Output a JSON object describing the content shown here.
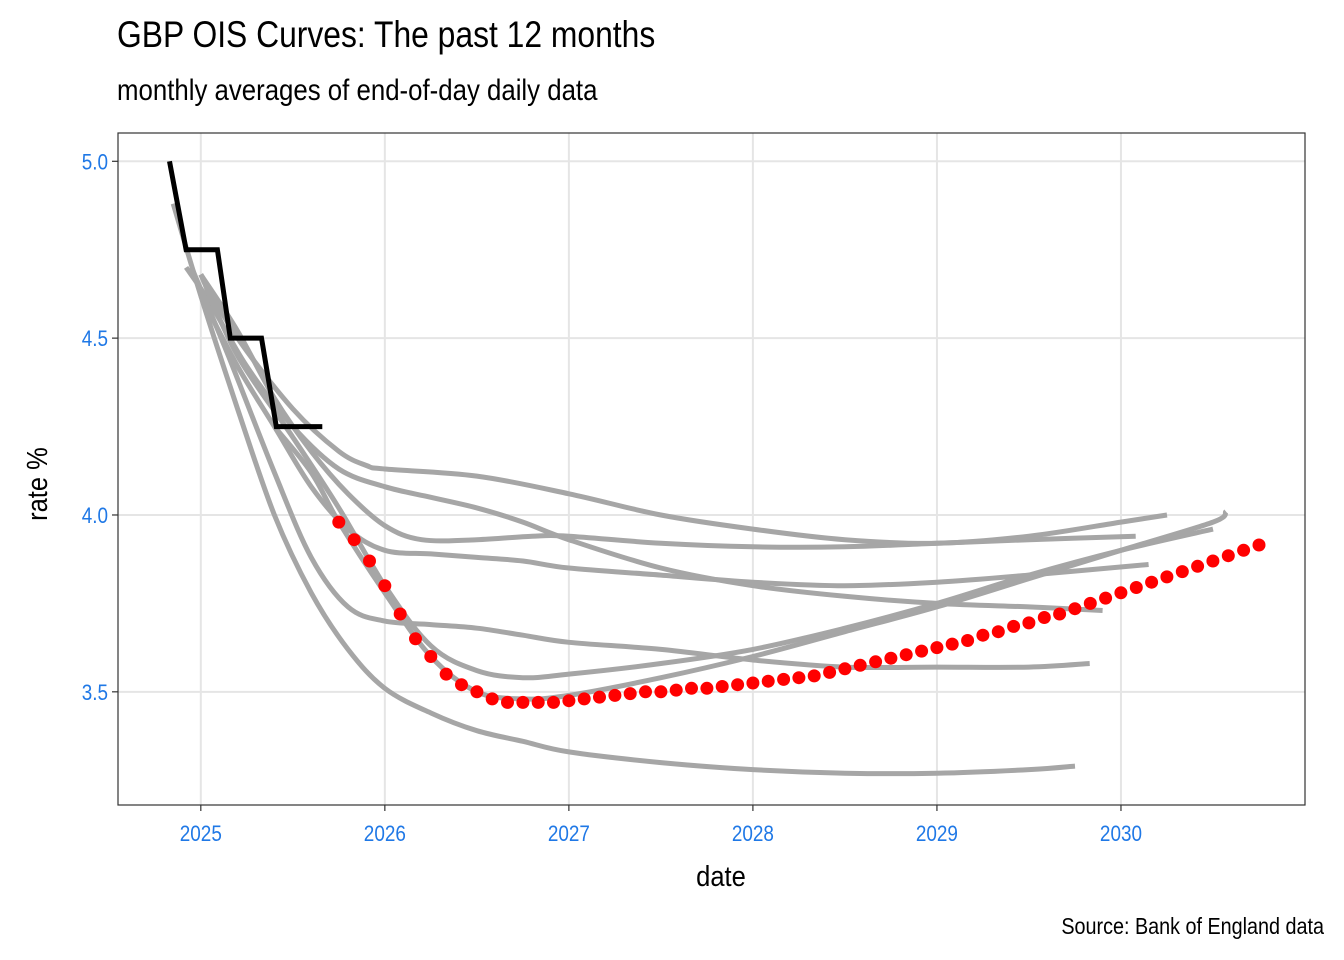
{
  "chart_data": {
    "type": "line",
    "title": "GBP OIS Curves: The past 12 months",
    "subtitle": "monthly averages of end-of-day daily data",
    "xlabel": "date",
    "ylabel": "rate %",
    "caption": "Source: Bank of England data",
    "xlim": [
      2024.55,
      2031.0
    ],
    "ylim": [
      3.18,
      5.08
    ],
    "x_ticks": [
      2025,
      2026,
      2027,
      2028,
      2029,
      2030
    ],
    "x_tick_labels": [
      "2025",
      "2026",
      "2027",
      "2028",
      "2029",
      "2030"
    ],
    "y_ticks": [
      3.5,
      4.0,
      4.5,
      5.0
    ],
    "y_tick_labels": [
      "3.5",
      "4.0",
      "4.5",
      "5.0"
    ],
    "grid": true,
    "colors": {
      "historical_curves": "#a6a6a6",
      "bank_rate": "#000000",
      "latest_curve": "#ff0000",
      "tick_labels": "#1f78e6"
    },
    "series": [
      {
        "style": "step",
        "color": "#000000",
        "points": [
          [
            2024.83,
            5.0
          ],
          [
            2024.92,
            4.75
          ],
          [
            2025.09,
            4.75
          ],
          [
            2025.16,
            4.5
          ],
          [
            2025.33,
            4.5
          ],
          [
            2025.41,
            4.25
          ],
          [
            2025.66,
            4.25
          ]
        ]
      },
      {
        "style": "line",
        "color": "#a6a6a6",
        "points": [
          [
            2024.92,
            4.7
          ],
          [
            2025.05,
            4.6
          ],
          [
            2025.25,
            4.42
          ],
          [
            2025.5,
            4.25
          ],
          [
            2025.75,
            4.13
          ],
          [
            2026.0,
            4.08
          ],
          [
            2026.25,
            4.05
          ],
          [
            2026.5,
            4.02
          ],
          [
            2026.75,
            3.98
          ],
          [
            2027.0,
            3.93
          ],
          [
            2027.5,
            3.85
          ],
          [
            2028.0,
            3.8
          ],
          [
            2028.5,
            3.77
          ],
          [
            2029.0,
            3.75
          ],
          [
            2029.5,
            3.74
          ],
          [
            2029.9,
            3.73
          ]
        ]
      },
      {
        "style": "line",
        "color": "#a6a6a6",
        "points": [
          [
            2025.0,
            4.68
          ],
          [
            2025.2,
            4.5
          ],
          [
            2025.5,
            4.3
          ],
          [
            2025.75,
            4.18
          ],
          [
            2025.9,
            4.14
          ],
          [
            2026.0,
            4.13
          ],
          [
            2026.5,
            4.11
          ],
          [
            2027.0,
            4.06
          ],
          [
            2027.5,
            4.0
          ],
          [
            2028.0,
            3.96
          ],
          [
            2028.5,
            3.93
          ],
          [
            2029.0,
            3.92
          ],
          [
            2029.5,
            3.94
          ],
          [
            2030.0,
            3.98
          ],
          [
            2030.25,
            4.0
          ]
        ]
      },
      {
        "style": "line",
        "color": "#a6a6a6",
        "points": [
          [
            2025.0,
            4.68
          ],
          [
            2025.2,
            4.52
          ],
          [
            2025.4,
            4.33
          ],
          [
            2025.6,
            4.18
          ],
          [
            2025.8,
            4.06
          ],
          [
            2026.0,
            3.97
          ],
          [
            2026.2,
            3.93
          ],
          [
            2026.5,
            3.93
          ],
          [
            2026.8,
            3.94
          ],
          [
            2027.0,
            3.94
          ],
          [
            2027.5,
            3.92
          ],
          [
            2028.0,
            3.91
          ],
          [
            2028.5,
            3.91
          ],
          [
            2029.0,
            3.92
          ],
          [
            2029.5,
            3.93
          ],
          [
            2030.08,
            3.94
          ]
        ]
      },
      {
        "style": "line",
        "color": "#a6a6a6",
        "points": [
          [
            2025.0,
            4.62
          ],
          [
            2025.2,
            4.42
          ],
          [
            2025.4,
            4.25
          ],
          [
            2025.6,
            4.08
          ],
          [
            2025.8,
            3.96
          ],
          [
            2026.0,
            3.9
          ],
          [
            2026.25,
            3.89
          ],
          [
            2026.5,
            3.88
          ],
          [
            2026.75,
            3.87
          ],
          [
            2027.0,
            3.85
          ],
          [
            2027.5,
            3.83
          ],
          [
            2028.0,
            3.81
          ],
          [
            2028.5,
            3.8
          ],
          [
            2029.0,
            3.81
          ],
          [
            2029.5,
            3.83
          ],
          [
            2030.15,
            3.86
          ]
        ]
      },
      {
        "style": "line",
        "color": "#a6a6a6",
        "points": [
          [
            2024.95,
            4.7
          ],
          [
            2025.15,
            4.45
          ],
          [
            2025.4,
            4.12
          ],
          [
            2025.6,
            3.88
          ],
          [
            2025.8,
            3.74
          ],
          [
            2026.0,
            3.7
          ],
          [
            2026.25,
            3.69
          ],
          [
            2026.5,
            3.68
          ],
          [
            2026.75,
            3.66
          ],
          [
            2027.0,
            3.64
          ],
          [
            2027.5,
            3.62
          ],
          [
            2028.0,
            3.59
          ],
          [
            2028.5,
            3.57
          ],
          [
            2029.0,
            3.57
          ],
          [
            2029.5,
            3.57
          ],
          [
            2029.83,
            3.58
          ]
        ]
      },
      {
        "style": "line",
        "color": "#a6a6a6",
        "points": [
          [
            2025.0,
            4.68
          ],
          [
            2025.2,
            4.45
          ],
          [
            2025.5,
            4.22
          ],
          [
            2025.75,
            4.02
          ],
          [
            2026.0,
            3.8
          ],
          [
            2026.25,
            3.63
          ],
          [
            2026.5,
            3.56
          ],
          [
            2026.75,
            3.54
          ],
          [
            2027.0,
            3.55
          ],
          [
            2027.5,
            3.58
          ],
          [
            2028.0,
            3.62
          ],
          [
            2028.5,
            3.68
          ],
          [
            2029.0,
            3.75
          ],
          [
            2029.5,
            3.83
          ],
          [
            2030.0,
            3.9
          ],
          [
            2030.5,
            3.96
          ]
        ]
      },
      {
        "style": "line",
        "color": "#a6a6a6",
        "points": [
          [
            2024.85,
            4.88
          ],
          [
            2025.0,
            4.62
          ],
          [
            2025.2,
            4.3
          ],
          [
            2025.4,
            4.0
          ],
          [
            2025.6,
            3.78
          ],
          [
            2025.8,
            3.62
          ],
          [
            2026.0,
            3.51
          ],
          [
            2026.25,
            3.44
          ],
          [
            2026.5,
            3.39
          ],
          [
            2026.75,
            3.36
          ],
          [
            2027.0,
            3.33
          ],
          [
            2027.5,
            3.3
          ],
          [
            2028.0,
            3.28
          ],
          [
            2028.5,
            3.27
          ],
          [
            2029.0,
            3.27
          ],
          [
            2029.5,
            3.28
          ],
          [
            2029.75,
            3.29
          ]
        ]
      },
      {
        "style": "line",
        "color": "#a6a6a6",
        "points": [
          [
            2025.4,
            4.25
          ],
          [
            2025.6,
            4.12
          ],
          [
            2025.75,
            3.98
          ],
          [
            2026.0,
            3.78
          ],
          [
            2026.25,
            3.6
          ],
          [
            2026.5,
            3.5
          ],
          [
            2026.75,
            3.48
          ],
          [
            2027.0,
            3.49
          ],
          [
            2027.5,
            3.54
          ],
          [
            2028.0,
            3.6
          ],
          [
            2028.5,
            3.67
          ],
          [
            2029.0,
            3.74
          ],
          [
            2029.5,
            3.82
          ],
          [
            2030.0,
            3.9
          ],
          [
            2030.5,
            3.98
          ],
          [
            2030.57,
            4.01
          ]
        ]
      },
      {
        "style": "points",
        "color": "#ff0000",
        "x_start": 2025.75,
        "x_step": 0.08333,
        "values": [
          3.98,
          3.93,
          3.87,
          3.8,
          3.72,
          3.65,
          3.6,
          3.55,
          3.52,
          3.5,
          3.48,
          3.47,
          3.47,
          3.47,
          3.47,
          3.475,
          3.48,
          3.485,
          3.49,
          3.495,
          3.5,
          3.5,
          3.505,
          3.51,
          3.51,
          3.515,
          3.52,
          3.525,
          3.53,
          3.535,
          3.54,
          3.545,
          3.555,
          3.565,
          3.575,
          3.585,
          3.595,
          3.605,
          3.615,
          3.625,
          3.635,
          3.645,
          3.66,
          3.67,
          3.685,
          3.695,
          3.71,
          3.72,
          3.735,
          3.75,
          3.765,
          3.78,
          3.795,
          3.81,
          3.825,
          3.84,
          3.855,
          3.87,
          3.885,
          3.9,
          3.915
        ]
      }
    ]
  }
}
